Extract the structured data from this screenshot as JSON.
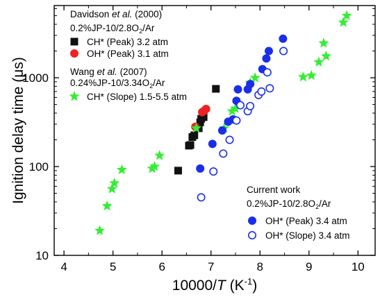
{
  "chart_data": {
    "type": "scatter",
    "xlabel_prefix": "10000/",
    "xlabel_var": "T",
    "xlabel_unit": " (K",
    "xlabel_exp": "-1",
    "xlabel_close": ")",
    "ylabel": "Ignition delay time (μs)",
    "xlim": [
      3.8,
      10.35
    ],
    "ylim": [
      10,
      6500
    ],
    "yscale": "log",
    "x_ticks": [
      "4",
      "5",
      "6",
      "7",
      "8",
      "9",
      "10"
    ],
    "y_ticks": [
      "10",
      "100",
      "1000"
    ],
    "legend_groups": [
      {
        "author": "Davidson ",
        "etal": "et al.",
        "year": " (2000)",
        "condition_pre": "0.2%JP-10/2.8O",
        "condition_sub": "2",
        "condition_post": "/Ar"
      },
      {
        "author": "Wang ",
        "etal": "et al.",
        "year": " (2007)",
        "condition_pre": "0.24%JP-10/3.34O",
        "condition_sub": "2",
        "condition_post": "/Ar"
      },
      {
        "author": "Current work",
        "etal": "",
        "year": "",
        "condition_pre": "0.2%JP-10/2.8O",
        "condition_sub": "2",
        "condition_post": "/Ar"
      }
    ],
    "series": [
      {
        "name": "CH* (Peak) 3.2 atm",
        "marker": "square",
        "color": "#111111",
        "filled": true,
        "points": [
          [
            6.33,
            90
          ],
          [
            6.55,
            172
          ],
          [
            6.58,
            175
          ],
          [
            6.62,
            215
          ],
          [
            6.66,
            225
          ],
          [
            6.75,
            270
          ],
          [
            6.78,
            315
          ],
          [
            6.8,
            345
          ],
          [
            6.85,
            360
          ],
          [
            7.1,
            750
          ]
        ]
      },
      {
        "name": "OH* (Peak) 3.1 atm",
        "marker": "circle",
        "color": "#ee2222",
        "filled": true,
        "points": [
          [
            6.68,
            280
          ],
          [
            6.82,
            410
          ],
          [
            6.86,
            425
          ],
          [
            6.9,
            445
          ]
        ]
      },
      {
        "name": "CH* (Slope) 1.5-5.5 atm",
        "marker": "star",
        "color": "#33ee33",
        "filled": true,
        "points": [
          [
            4.73,
            19
          ],
          [
            4.88,
            36
          ],
          [
            4.98,
            56
          ],
          [
            5.03,
            65
          ],
          [
            5.18,
            92
          ],
          [
            5.8,
            95
          ],
          [
            5.85,
            100
          ],
          [
            5.95,
            133
          ],
          [
            6.7,
            270
          ],
          [
            7.27,
            270
          ],
          [
            7.43,
            420
          ],
          [
            7.5,
            450
          ],
          [
            7.8,
            880
          ],
          [
            7.9,
            1000
          ],
          [
            8.88,
            1020
          ],
          [
            9.05,
            1060
          ],
          [
            9.2,
            1500
          ],
          [
            9.3,
            2450
          ],
          [
            9.35,
            1750
          ],
          [
            9.7,
            4200
          ],
          [
            9.77,
            5000
          ]
        ]
      },
      {
        "name": "OH* (Peak) 3.4 atm",
        "marker": "circle",
        "color": "#1a2ee8",
        "filled": true,
        "points": [
          [
            6.78,
            95
          ],
          [
            7.03,
            180
          ],
          [
            7.23,
            255
          ],
          [
            7.35,
            320
          ],
          [
            7.45,
            340
          ],
          [
            7.52,
            550
          ],
          [
            7.55,
            740
          ],
          [
            7.75,
            740
          ],
          [
            7.8,
            850
          ],
          [
            8.05,
            1250
          ],
          [
            8.13,
            1650
          ],
          [
            8.18,
            2000
          ],
          [
            8.47,
            2750
          ]
        ]
      },
      {
        "name": "OH* (Slope) 3.4 atm",
        "marker": "circle",
        "color": "#1a2ee8",
        "filled": false,
        "points": [
          [
            6.8,
            45
          ],
          [
            7.05,
            88
          ],
          [
            7.25,
            140
          ],
          [
            7.38,
            200
          ],
          [
            7.52,
            330
          ],
          [
            7.6,
            490
          ],
          [
            7.75,
            420
          ],
          [
            7.8,
            480
          ],
          [
            7.97,
            640
          ],
          [
            8.03,
            700
          ],
          [
            8.15,
            1150
          ],
          [
            8.2,
            760
          ],
          [
            8.48,
            2000
          ]
        ]
      }
    ]
  }
}
